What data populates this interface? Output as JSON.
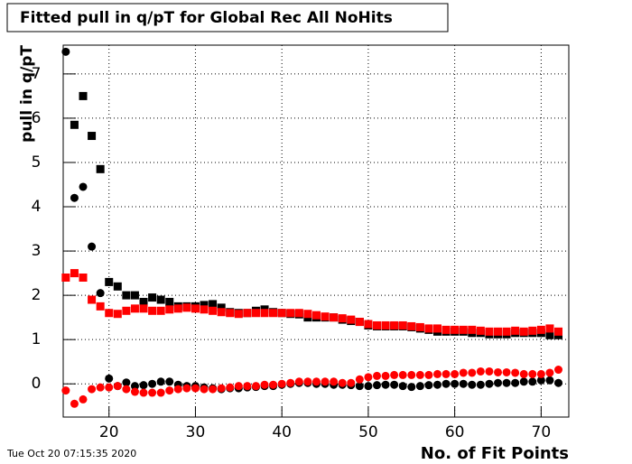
{
  "chart_data": {
    "type": "scatter",
    "title": "Fitted pull in q/pT for Global Rec All NoHits",
    "y_label": "pull in q/pT",
    "x_label": "No. of Fit Points",
    "timestamp": "Tue Oct 20 07:15:35 2020",
    "x": [
      15,
      16,
      17,
      18,
      19,
      20,
      21,
      22,
      23,
      24,
      25,
      26,
      27,
      28,
      29,
      30,
      31,
      32,
      33,
      34,
      35,
      36,
      37,
      38,
      39,
      40,
      41,
      42,
      43,
      44,
      45,
      46,
      47,
      48,
      49,
      50,
      51,
      52,
      53,
      54,
      55,
      56,
      57,
      58,
      59,
      60,
      61,
      62,
      63,
      64,
      65,
      66,
      67,
      68,
      69,
      70,
      71,
      72
    ],
    "series": [
      {
        "color": "#000000",
        "marker": "square",
        "values": [
          null,
          5.85,
          6.5,
          5.6,
          4.85,
          2.3,
          2.2,
          2.0,
          2.0,
          1.85,
          1.95,
          1.9,
          1.85,
          1.75,
          1.75,
          1.75,
          1.78,
          1.8,
          1.72,
          1.62,
          1.6,
          1.6,
          1.65,
          1.68,
          1.62,
          1.6,
          1.58,
          1.57,
          1.5,
          1.5,
          1.5,
          1.5,
          1.45,
          1.42,
          1.4,
          1.32,
          1.3,
          1.3,
          1.3,
          1.3,
          1.28,
          1.25,
          1.22,
          1.18,
          1.18,
          1.18,
          1.18,
          1.15,
          1.15,
          1.12,
          1.12,
          1.12,
          1.15,
          1.15,
          1.15,
          1.15,
          1.1,
          1.1
        ]
      },
      {
        "color": "#ff0000",
        "marker": "square",
        "values": [
          2.4,
          2.5,
          2.4,
          1.9,
          1.75,
          1.6,
          1.58,
          1.65,
          1.7,
          1.7,
          1.65,
          1.65,
          1.68,
          1.7,
          1.72,
          1.7,
          1.68,
          1.65,
          1.62,
          1.6,
          1.58,
          1.6,
          1.6,
          1.6,
          1.6,
          1.6,
          1.6,
          1.6,
          1.58,
          1.55,
          1.52,
          1.5,
          1.48,
          1.45,
          1.4,
          1.35,
          1.32,
          1.32,
          1.32,
          1.32,
          1.3,
          1.28,
          1.25,
          1.25,
          1.22,
          1.22,
          1.22,
          1.22,
          1.2,
          1.18,
          1.18,
          1.18,
          1.2,
          1.18,
          1.2,
          1.22,
          1.25,
          1.18
        ]
      },
      {
        "color": "#000000",
        "marker": "circle",
        "values": [
          7.5,
          4.2,
          4.45,
          3.1,
          2.05,
          0.12,
          -0.05,
          0.03,
          -0.05,
          -0.03,
          0.0,
          0.05,
          0.05,
          -0.02,
          -0.05,
          -0.05,
          -0.08,
          -0.1,
          -0.12,
          -0.1,
          -0.1,
          -0.08,
          -0.07,
          -0.05,
          -0.05,
          -0.02,
          0.0,
          0.02,
          0.02,
          0.0,
          0.0,
          -0.02,
          -0.02,
          -0.03,
          -0.05,
          -0.05,
          -0.03,
          -0.02,
          -0.02,
          -0.05,
          -0.07,
          -0.05,
          -0.03,
          -0.02,
          0.0,
          0.0,
          0.0,
          -0.02,
          -0.02,
          0.0,
          0.02,
          0.02,
          0.02,
          0.05,
          0.05,
          0.08,
          0.08,
          0.02
        ]
      },
      {
        "color": "#ff0000",
        "marker": "circle",
        "values": [
          -0.15,
          -0.45,
          -0.35,
          -0.12,
          -0.08,
          -0.08,
          -0.05,
          -0.12,
          -0.18,
          -0.2,
          -0.2,
          -0.2,
          -0.15,
          -0.12,
          -0.1,
          -0.1,
          -0.12,
          -0.12,
          -0.1,
          -0.08,
          -0.05,
          -0.05,
          -0.05,
          -0.02,
          -0.02,
          0.0,
          0.02,
          0.05,
          0.05,
          0.05,
          0.05,
          0.05,
          0.02,
          0.02,
          0.1,
          0.15,
          0.18,
          0.18,
          0.2,
          0.2,
          0.2,
          0.2,
          0.2,
          0.22,
          0.22,
          0.22,
          0.25,
          0.25,
          0.28,
          0.28,
          0.26,
          0.26,
          0.25,
          0.22,
          0.22,
          0.22,
          0.25,
          0.32
        ]
      }
    ],
    "xlim": [
      14.7,
      73.2
    ],
    "ylim": [
      -0.75,
      7.65
    ],
    "xticks": [
      20,
      30,
      40,
      50,
      60,
      70
    ],
    "yticks": [
      0,
      1,
      2,
      3,
      4,
      5,
      6,
      7
    ],
    "grid": true
  }
}
